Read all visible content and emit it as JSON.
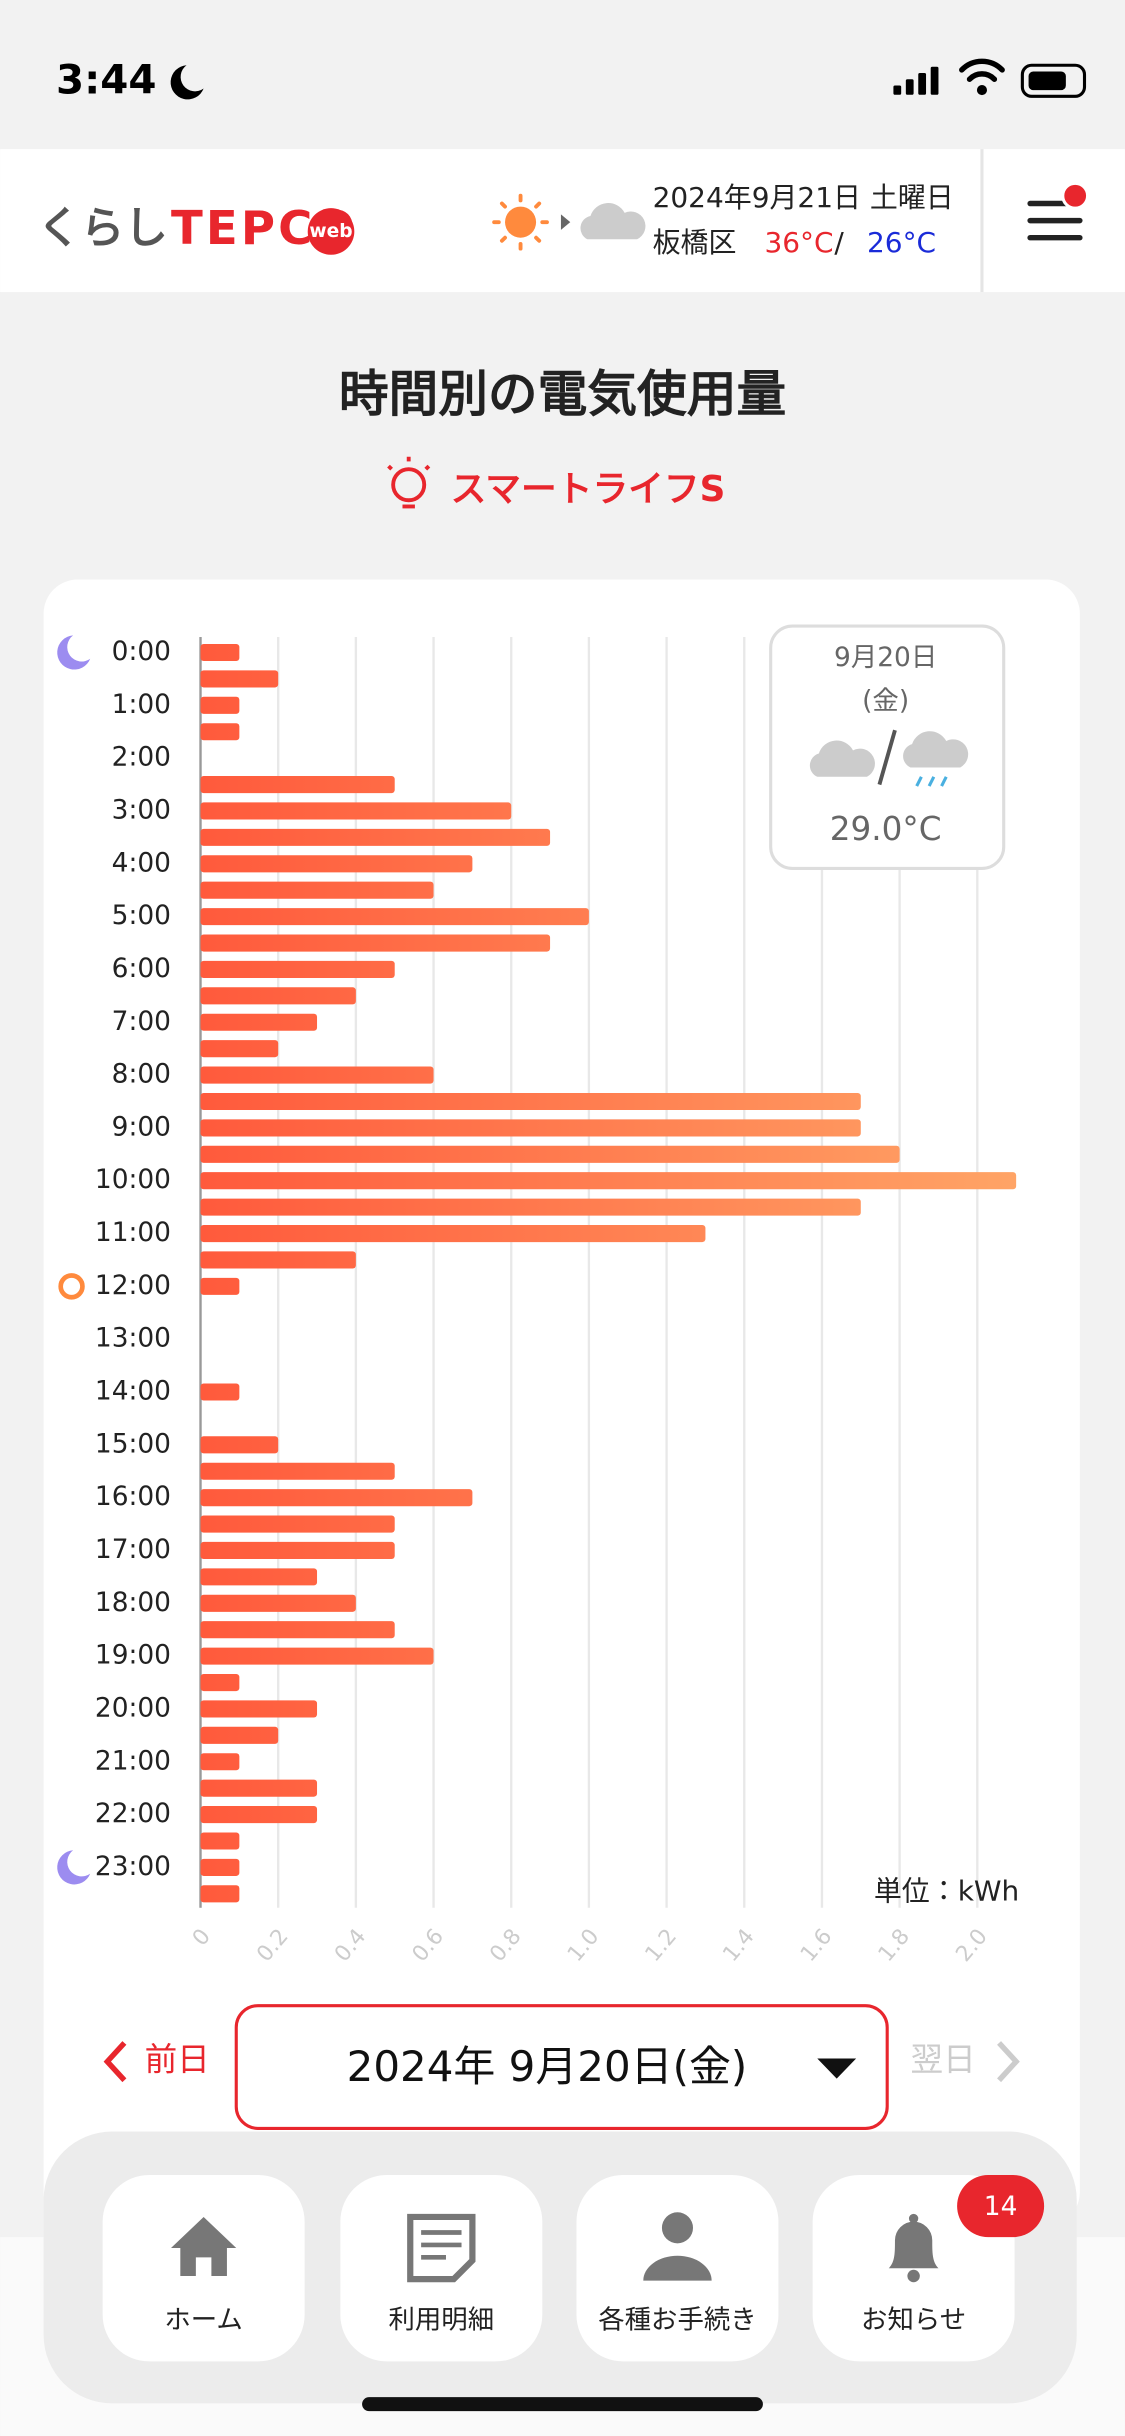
{
  "status_bar": {
    "time": "3:44"
  },
  "header": {
    "logo_prefix": "くらし",
    "logo_main": "TEPCO",
    "logo_badge": "web",
    "date": "2024年9月21日 土曜日",
    "area": "板橋区",
    "temp_high": "36°C",
    "separator": "/",
    "temp_low": "26°C"
  },
  "page": {
    "title": "時間別の電気使用量",
    "plan": "スマートライフS"
  },
  "chart_data": {
    "type": "bar",
    "orientation": "horizontal",
    "categories": [
      "0:00",
      null,
      "1:00",
      null,
      "2:00",
      null,
      "3:00",
      null,
      "4:00",
      null,
      "5:00",
      null,
      "6:00",
      null,
      "7:00",
      null,
      "8:00",
      null,
      "9:00",
      null,
      "10:00",
      null,
      "11:00",
      null,
      "12:00",
      null,
      "13:00",
      null,
      "14:00",
      null,
      "15:00",
      null,
      "16:00",
      null,
      "17:00",
      null,
      "18:00",
      null,
      "19:00",
      null,
      "20:00",
      null,
      "21:00",
      null,
      "22:00",
      null,
      "23:00",
      null
    ],
    "values": [
      0.1,
      0.2,
      0.1,
      0.1,
      0,
      0.5,
      0.8,
      0.9,
      0.7,
      0.6,
      1.0,
      0.9,
      0.5,
      0.4,
      0.3,
      0.2,
      0.6,
      1.7,
      1.7,
      1.8,
      2.1,
      1.7,
      1.3,
      0.4,
      0.1,
      0,
      0,
      0,
      0.1,
      0,
      0.2,
      0.5,
      0.7,
      0.5,
      0.5,
      0.3,
      0.4,
      0.5,
      0.6,
      0.1,
      0.3,
      0.2,
      0.1,
      0.3,
      0.3,
      0.1,
      0.1,
      0.1
    ],
    "colors": [
      "#ff5a3c",
      "#ffa466"
    ],
    "xlim": [
      0,
      2.1
    ],
    "xticks": [
      0,
      0.2,
      0.4,
      0.6,
      0.8,
      {
        "value": 1.0,
        "label": "1.0"
      },
      1.2,
      1.4,
      1.6,
      1.8,
      {
        "value": 2.0,
        "label": "2.0"
      }
    ],
    "grid": true,
    "unit_label": "単位：kWh",
    "weather": {
      "date": "9月20日",
      "weekday": "(金)",
      "temperature": "29.0°C"
    }
  },
  "date_nav": {
    "prev": "前日",
    "current": "2024年 9月20日(金)",
    "next": "翌日"
  },
  "tab_bar": {
    "items": [
      "ホーム",
      "利用明細",
      "各種お手続き",
      "お知らせ"
    ],
    "badge": "14"
  }
}
